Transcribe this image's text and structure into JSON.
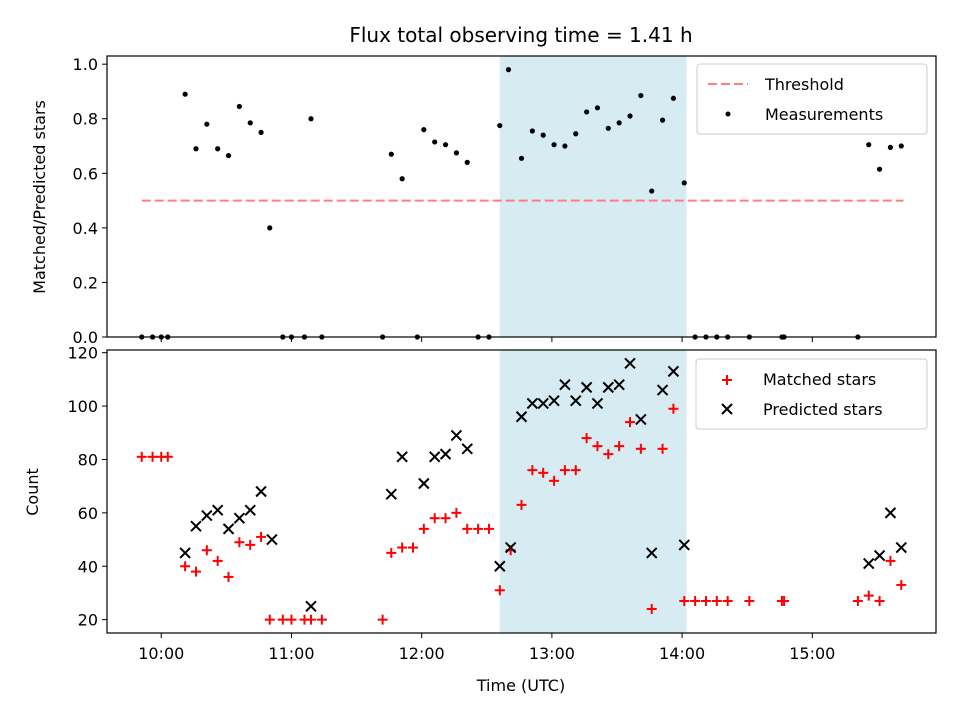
{
  "chart_data": [
    {
      "type": "scatter",
      "title": "Flux total observing time = 1.41 h",
      "ylabel": "Matched/Predicted stars",
      "ylim": [
        0,
        1.03
      ],
      "yticks": [
        "0.0",
        "0.2",
        "0.4",
        "0.6",
        "0.8",
        "1.0"
      ],
      "xlim": [
        "09:35",
        "15:57"
      ],
      "shaded_interval": [
        "12:36",
        "14:02"
      ],
      "shade_color": "#add8e6",
      "legend_position": "top-right",
      "threshold": {
        "name": "Threshold",
        "y": 0.5,
        "x_start": "09:51",
        "x_end": "15:42",
        "color": "#ff7f7f",
        "style": "dashed"
      },
      "series": [
        {
          "name": "Measurements",
          "color": "#000000",
          "marker": "dot",
          "x": [
            "09:51",
            "09:56",
            "10:00",
            "10:03",
            "10:11",
            "10:16",
            "10:21",
            "10:26",
            "10:31",
            "10:36",
            "10:41",
            "10:46",
            "10:50",
            "10:56",
            "11:00",
            "11:06",
            "11:09",
            "11:14",
            "11:42",
            "11:46",
            "11:51",
            "11:58",
            "12:01",
            "12:06",
            "12:11",
            "12:16",
            "12:21",
            "12:26",
            "12:31",
            "12:36",
            "12:40",
            "12:46",
            "12:51",
            "12:56",
            "13:01",
            "13:06",
            "13:11",
            "13:16",
            "13:21",
            "13:26",
            "13:31",
            "13:36",
            "13:41",
            "13:46",
            "13:51",
            "13:56",
            "14:01",
            "14:06",
            "14:11",
            "14:16",
            "14:21",
            "14:31",
            "14:46",
            "14:47",
            "15:21",
            "15:26",
            "15:31",
            "15:36",
            "15:41"
          ],
          "y": [
            0.0,
            0.0,
            0.0,
            0.0,
            0.89,
            0.69,
            0.78,
            0.69,
            0.665,
            0.845,
            0.785,
            0.75,
            0.4,
            0.0,
            0.0,
            0.0,
            0.8,
            0.0,
            0.0,
            0.67,
            0.58,
            0.0,
            0.76,
            0.715,
            0.705,
            0.675,
            0.64,
            0.0,
            0.0,
            0.775,
            0.98,
            0.655,
            0.755,
            0.74,
            0.705,
            0.7,
            0.745,
            0.825,
            0.84,
            0.765,
            0.785,
            0.81,
            0.885,
            0.535,
            0.795,
            0.875,
            0.565,
            0.0,
            0.0,
            0.0,
            0.0,
            0.0,
            0.0,
            0.0,
            0.0,
            0.705,
            0.615,
            0.695,
            0.7
          ]
        }
      ]
    },
    {
      "type": "scatter",
      "xlabel": "Time (UTC)",
      "ylabel": "Count",
      "ylim": [
        15,
        121
      ],
      "yticks": [
        "20",
        "40",
        "60",
        "80",
        "100",
        "120"
      ],
      "xlim": [
        "09:35",
        "15:57"
      ],
      "xticks": [
        "10:00",
        "11:00",
        "12:00",
        "13:00",
        "14:00",
        "15:00"
      ],
      "shaded_interval": [
        "12:36",
        "14:02"
      ],
      "shade_color": "#add8e6",
      "legend_position": "top-right",
      "series": [
        {
          "name": "Matched stars",
          "color": "#ff0000",
          "marker": "plus",
          "x": [
            "09:51",
            "09:56",
            "10:00",
            "10:03",
            "10:11",
            "10:16",
            "10:21",
            "10:26",
            "10:31",
            "10:36",
            "10:41",
            "10:46",
            "10:50",
            "10:56",
            "11:00",
            "11:06",
            "11:09",
            "11:14",
            "11:42",
            "11:46",
            "11:51",
            "11:56",
            "12:01",
            "12:06",
            "12:11",
            "12:16",
            "12:21",
            "12:26",
            "12:31",
            "12:36",
            "12:41",
            "12:46",
            "12:51",
            "12:56",
            "13:01",
            "13:06",
            "13:11",
            "13:16",
            "13:21",
            "13:26",
            "13:31",
            "13:36",
            "13:41",
            "13:46",
            "13:51",
            "13:56",
            "14:01",
            "14:06",
            "14:11",
            "14:16",
            "14:21",
            "14:31",
            "14:46",
            "14:47",
            "15:21",
            "15:26",
            "15:31",
            "15:36",
            "15:41"
          ],
          "y": [
            81,
            81,
            81,
            81,
            40,
            38,
            46,
            42,
            36,
            49,
            48,
            51,
            20,
            20,
            20,
            20,
            20,
            20,
            20,
            45,
            47,
            47,
            54,
            58,
            58,
            60,
            54,
            54,
            54,
            31,
            46,
            63,
            76,
            75,
            72,
            76,
            76,
            88,
            85,
            82,
            85,
            94,
            84,
            24,
            84,
            99,
            27,
            27,
            27,
            27,
            27,
            27,
            27,
            27,
            27,
            29,
            27,
            42,
            33
          ]
        },
        {
          "name": "Predicted stars",
          "color": "#000000",
          "marker": "x",
          "x": [
            "10:11",
            "10:16",
            "10:21",
            "10:26",
            "10:31",
            "10:36",
            "10:41",
            "10:46",
            "10:51",
            "11:09",
            "11:46",
            "11:51",
            "12:01",
            "12:06",
            "12:11",
            "12:16",
            "12:21",
            "12:36",
            "12:41",
            "12:46",
            "12:51",
            "12:56",
            "13:01",
            "13:06",
            "13:11",
            "13:16",
            "13:21",
            "13:26",
            "13:31",
            "13:36",
            "13:41",
            "13:46",
            "13:51",
            "13:56",
            "14:01",
            "15:26",
            "15:31",
            "15:36",
            "15:41"
          ],
          "y": [
            45,
            55,
            59,
            61,
            54,
            58,
            61,
            68,
            50,
            25,
            67,
            81,
            71,
            81,
            82,
            89,
            84,
            40,
            47,
            96,
            101,
            101,
            102,
            108,
            102,
            107,
            101,
            107,
            108,
            116,
            95,
            45,
            106,
            113,
            48,
            41,
            44,
            60,
            47
          ]
        }
      ]
    }
  ]
}
